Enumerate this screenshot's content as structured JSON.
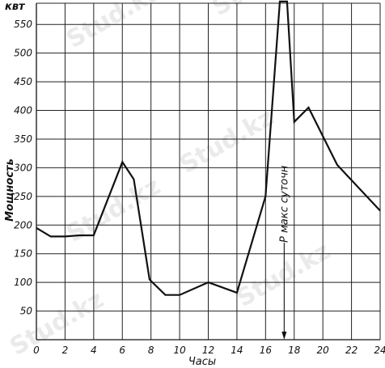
{
  "chart_data": {
    "type": "line",
    "unit_label": "квт",
    "ylabel": "Мощность",
    "xlabel": "Часы",
    "xlim": [
      0,
      24
    ],
    "ylim": [
      0,
      590
    ],
    "x_ticks": [
      "0",
      "2",
      "4",
      "6",
      "8",
      "10",
      "12",
      "14",
      "16",
      "18",
      "20",
      "22",
      "24"
    ],
    "y_ticks": [
      "50",
      "100",
      "150",
      "200",
      "250",
      "300",
      "350",
      "400",
      "450",
      "500",
      "550"
    ],
    "grid": true,
    "series": [
      {
        "x": [
          0,
          1,
          2,
          3,
          4,
          6,
          6.8,
          7.9,
          9,
          10,
          12,
          14,
          16,
          17,
          17.5,
          18,
          19,
          21,
          24
        ],
        "y": [
          195,
          180,
          180,
          182,
          182,
          310,
          280,
          105,
          78,
          78,
          100,
          82,
          250,
          590,
          590,
          380,
          405,
          305,
          225
        ]
      }
    ],
    "annotation": {
      "text": "P макс суточн",
      "x": 17.3
    },
    "watermark": "Stud.kz"
  }
}
